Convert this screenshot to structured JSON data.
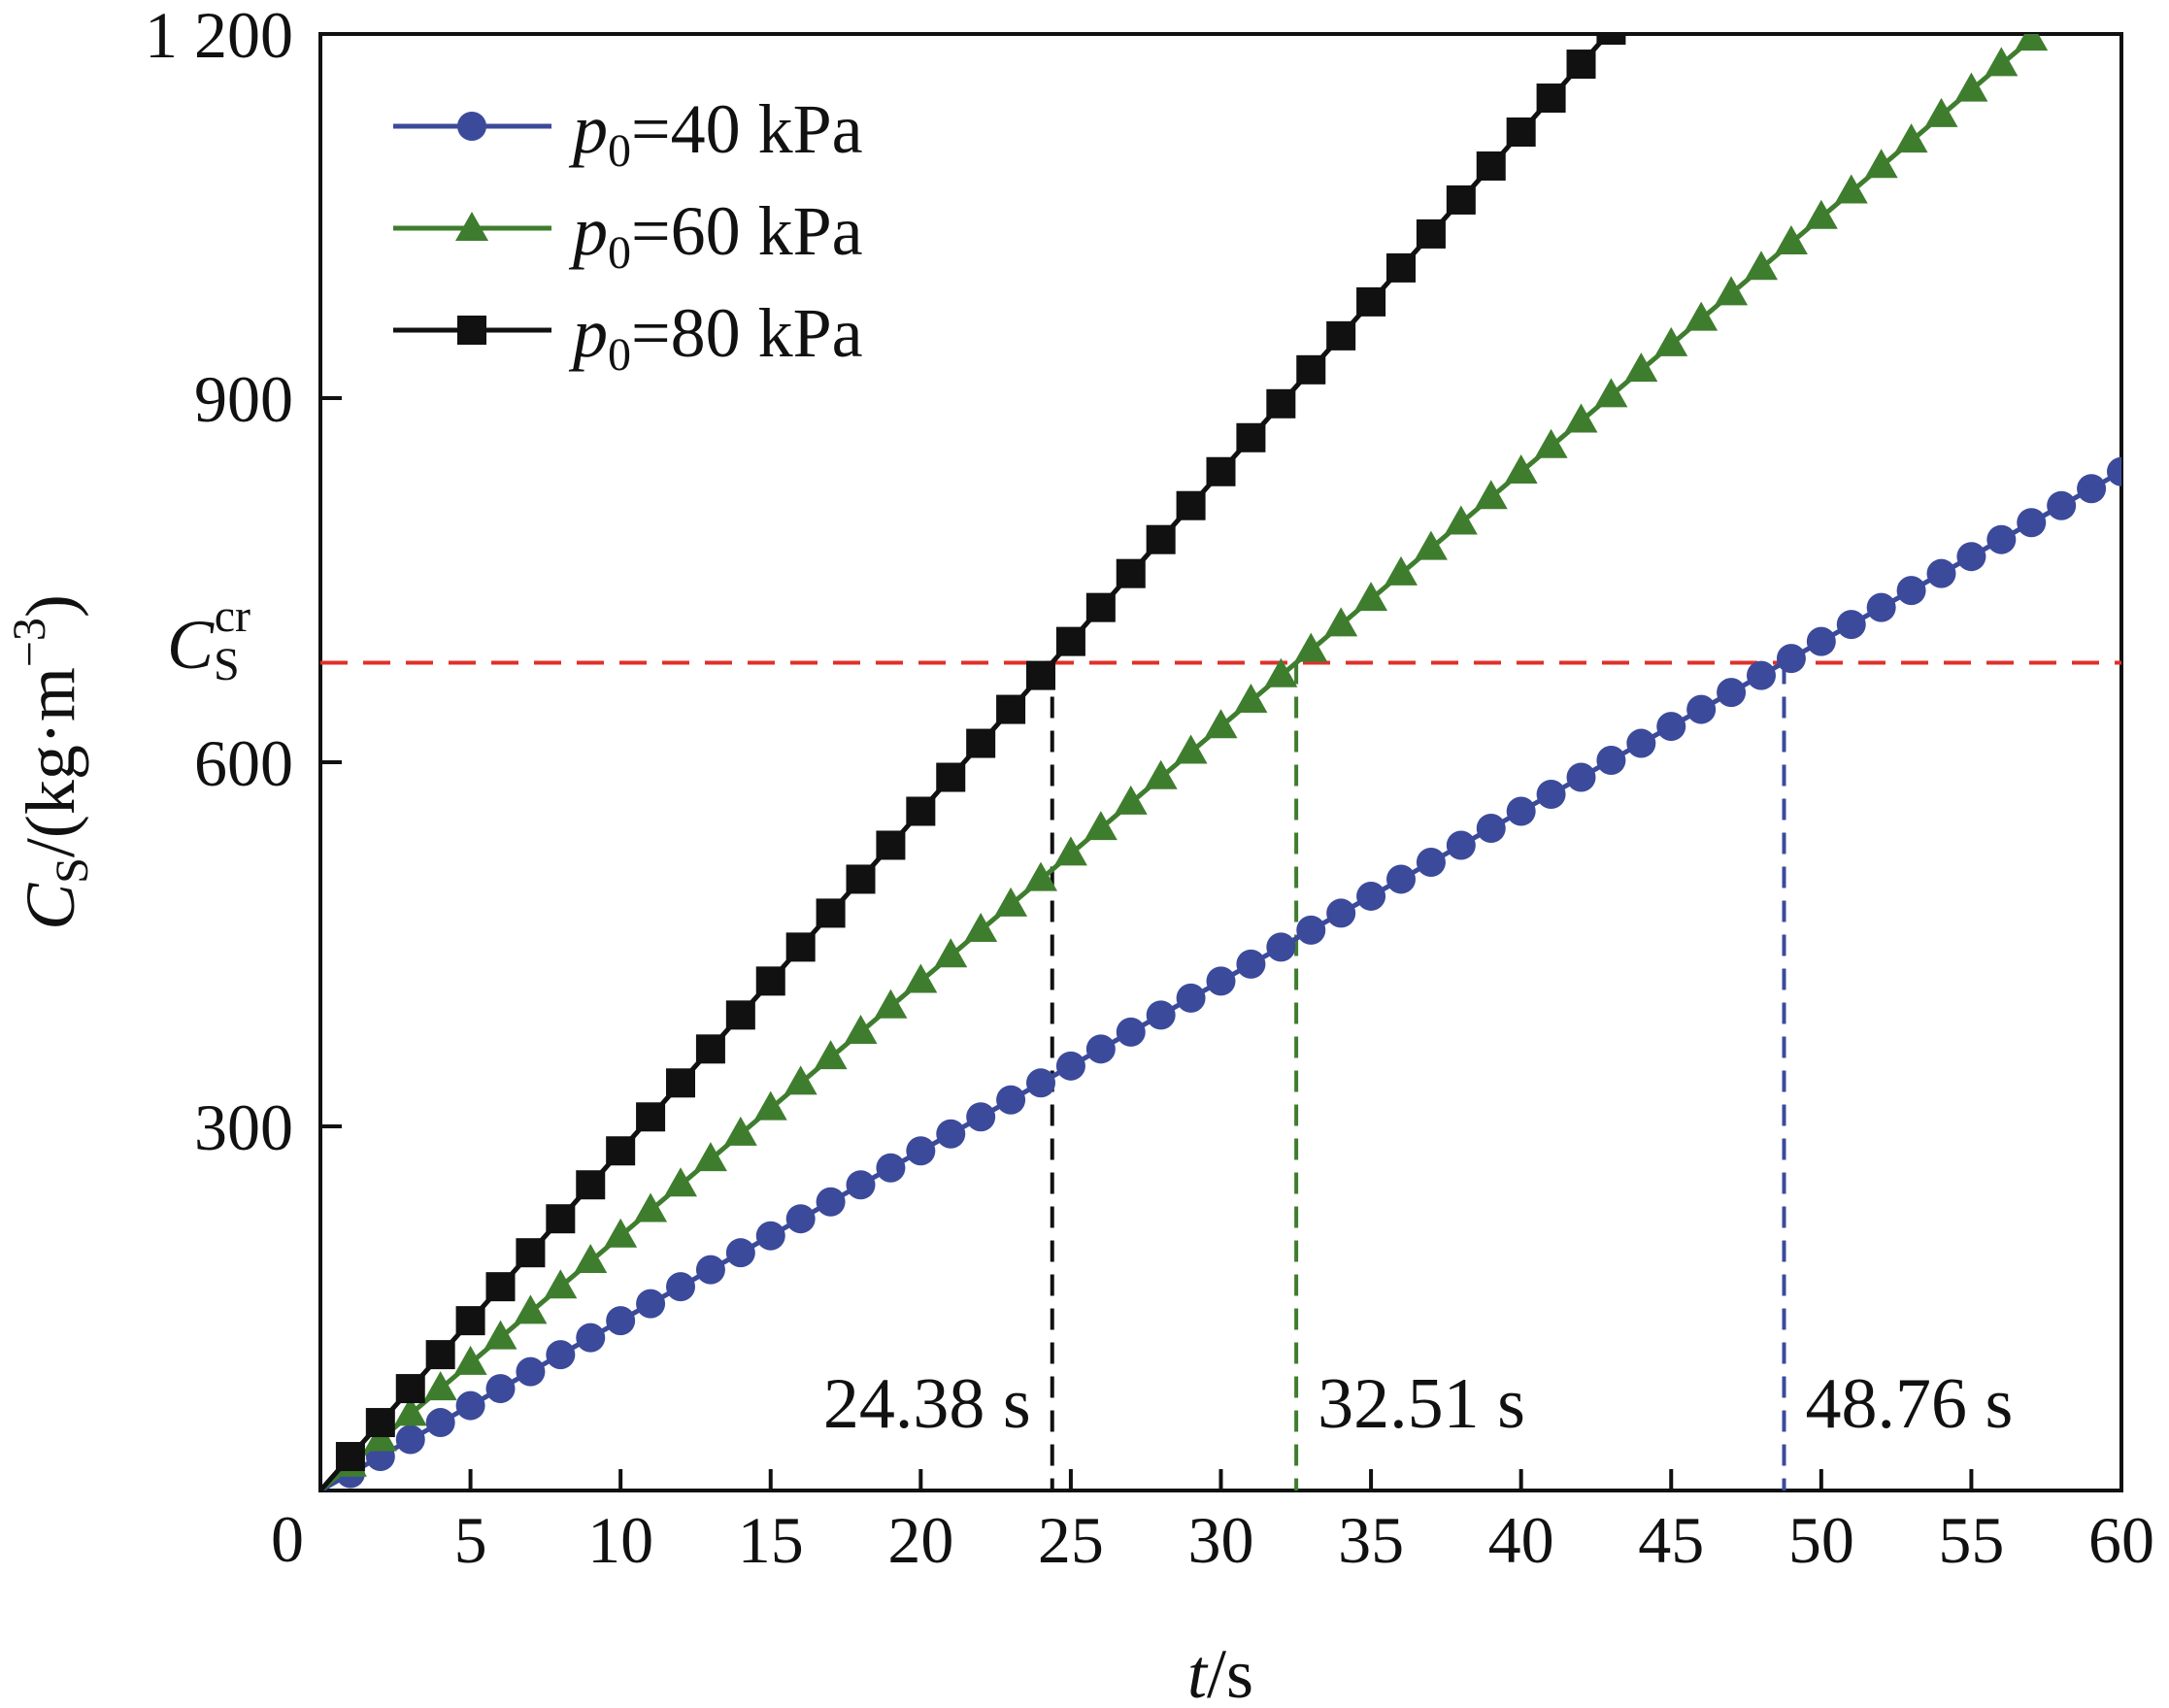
{
  "chart_data": {
    "type": "line",
    "xlabel_var": "t",
    "xlabel_unit": "/s",
    "ylabel_var": "C",
    "ylabel_sub": "S",
    "ylabel_unit": "/(kg·m",
    "ylabel_exp": "−3",
    "ylabel_close": ")",
    "xlim": [
      0,
      60
    ],
    "ylim": [
      0,
      1200
    ],
    "x_ticks": [
      5,
      10,
      15,
      20,
      25,
      30,
      35,
      40,
      45,
      50,
      55,
      60
    ],
    "x_tick_labels": [
      "5",
      "10",
      "15",
      "20",
      "25",
      "30",
      "35",
      "40",
      "45",
      "50",
      "55",
      "60"
    ],
    "y_ticks": [
      300,
      600,
      900,
      1200
    ],
    "y_tick_labels": [
      "300",
      "600",
      "900",
      "1 200"
    ],
    "origin_label": "0",
    "grid": false,
    "legend_position": "top-left",
    "series": [
      {
        "name_var": "p",
        "name_sub": "0",
        "name_rest": "=40 kPa",
        "slope": 13.99,
        "x_start": 1,
        "x_end": 60,
        "step": 1,
        "marker": "circle",
        "color": "#3b4a9a"
      },
      {
        "name_var": "p",
        "name_sub": "0",
        "name_rest": "=60 kPa",
        "slope": 20.98,
        "x_start": 1,
        "x_end": 57,
        "step": 1,
        "marker": "triangle",
        "color": "#3f7d2e"
      },
      {
        "name_var": "p",
        "name_sub": "0",
        "name_rest": "=80 kPa",
        "slope": 27.98,
        "x_start": 1,
        "x_end": 43,
        "step": 1,
        "marker": "square",
        "color": "#111111"
      }
    ],
    "threshold": {
      "label_var": "C",
      "label_sub": "S",
      "label_sup": "cr",
      "value": 682,
      "color": "#e0302a"
    },
    "annotations": [
      {
        "x": 24.38,
        "text": "24.38 s",
        "color": "#111111",
        "label_side": "left"
      },
      {
        "x": 32.51,
        "text": "32.51 s",
        "color": "#3f7d2e",
        "label_side": "right"
      },
      {
        "x": 48.76,
        "text": "48.76 s",
        "color": "#3b4a9a",
        "label_side": "right"
      }
    ]
  }
}
